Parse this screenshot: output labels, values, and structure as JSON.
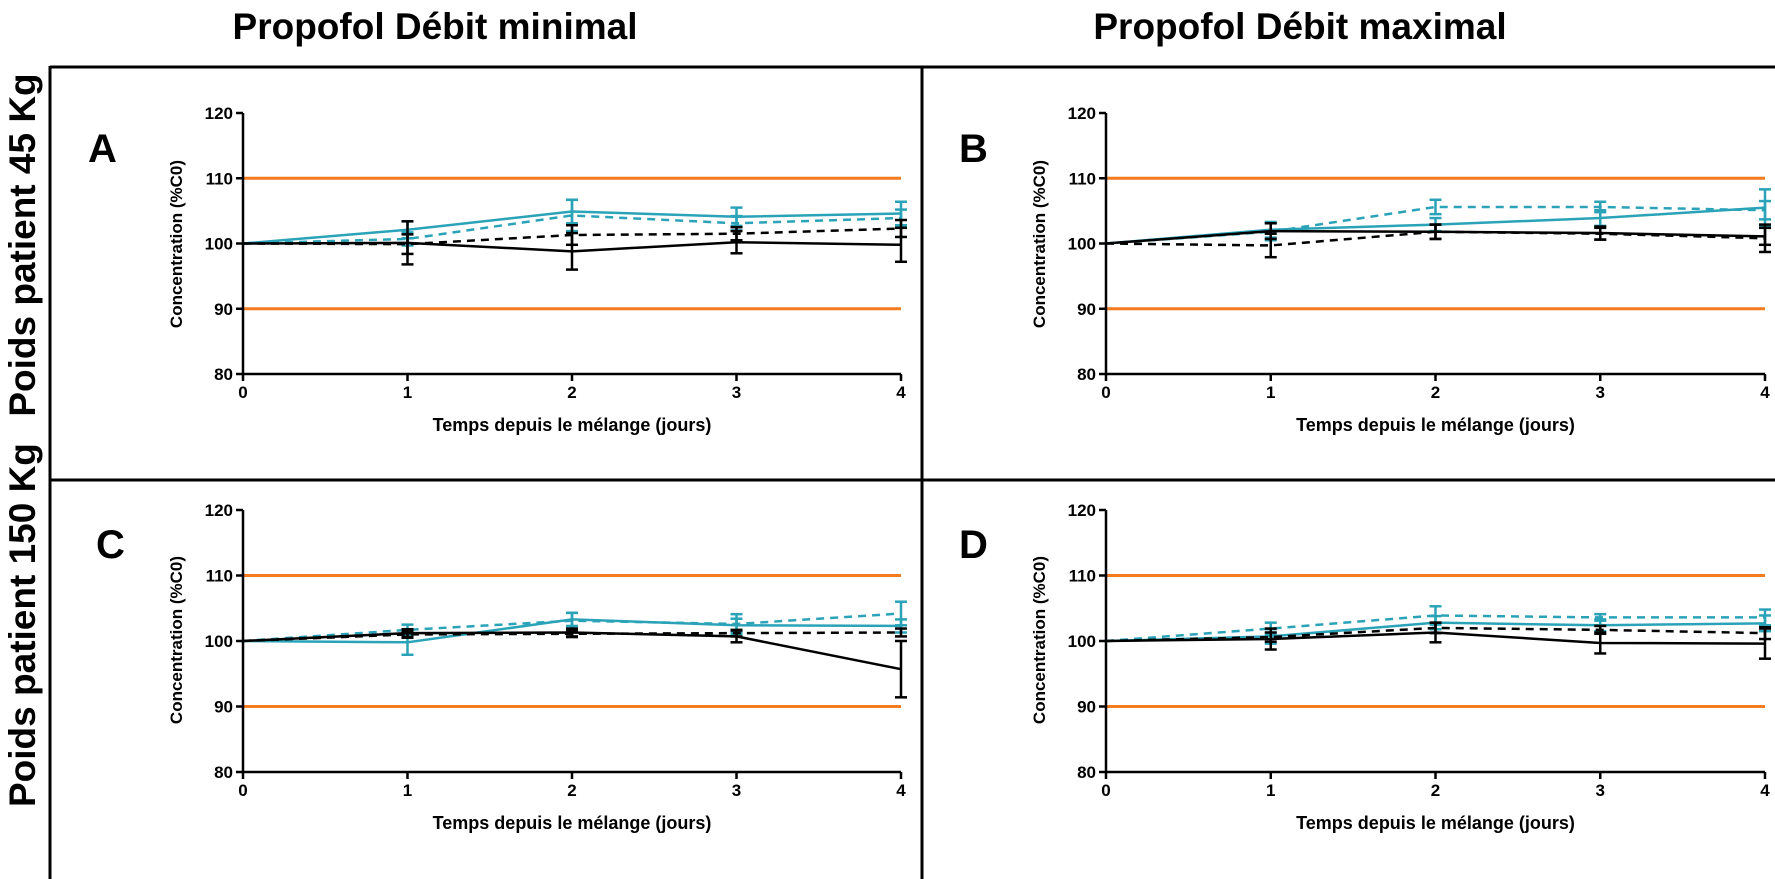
{
  "columns": [
    "Propofol Débit minimal",
    "Propofol Débit maximal"
  ],
  "rows": [
    "Poids patient 45 Kg",
    "Poids patient 150 Kg"
  ],
  "colors": {
    "teal": "#2aa3b8",
    "black": "#000000",
    "limit": "#f47b20"
  },
  "chart_data": [
    {
      "panel": "A",
      "type": "line",
      "xlabel": "Temps depuis le mélange (jours)",
      "ylabel": "Concentration (%C0)",
      "xlim": [
        0,
        4
      ],
      "ylim": [
        80,
        120
      ],
      "xticks": [
        0,
        1,
        2,
        3,
        4
      ],
      "yticks": [
        80,
        90,
        100,
        110,
        120
      ],
      "limits": [
        90,
        110
      ],
      "x": [
        0,
        1,
        2,
        3,
        4
      ],
      "series": [
        {
          "color": "teal",
          "dashed": false,
          "values": [
            100,
            102.1,
            104.9,
            104.1,
            104.6
          ],
          "err": [
            0,
            1.3,
            1.8,
            1.4,
            1.8
          ]
        },
        {
          "color": "teal",
          "dashed": true,
          "values": [
            100,
            100.7,
            104.3,
            103.1,
            103.9
          ],
          "err": [
            0,
            1.0,
            2.4,
            1.1,
            1.3
          ]
        },
        {
          "color": "black",
          "dashed": false,
          "values": [
            100,
            100.1,
            98.8,
            100.2,
            99.8
          ],
          "err": [
            0,
            3.3,
            2.8,
            1.7,
            2.6
          ]
        },
        {
          "color": "black",
          "dashed": true,
          "values": [
            100,
            99.9,
            101.3,
            101.5,
            102.3
          ],
          "err": [
            0,
            1.5,
            1.5,
            1.0,
            1.3
          ]
        }
      ]
    },
    {
      "panel": "B",
      "type": "line",
      "xlabel": "Temps depuis le mélange (jours)",
      "ylabel": "Concentration (%C0)",
      "xlim": [
        0,
        4
      ],
      "ylim": [
        80,
        120
      ],
      "xticks": [
        0,
        1,
        2,
        3,
        4
      ],
      "yticks": [
        80,
        90,
        100,
        110,
        120
      ],
      "limits": [
        90,
        110
      ],
      "x": [
        0,
        1,
        2,
        3,
        4
      ],
      "series": [
        {
          "color": "teal",
          "dashed": false,
          "values": [
            100,
            102.1,
            102.9,
            103.9,
            105.5
          ],
          "err": [
            0,
            1.2,
            1.0,
            1.2,
            2.8
          ]
        },
        {
          "color": "teal",
          "dashed": true,
          "values": [
            100,
            101.8,
            105.6,
            105.6,
            105.1
          ],
          "err": [
            0,
            1.3,
            1.1,
            0.8,
            1.4
          ]
        },
        {
          "color": "black",
          "dashed": false,
          "values": [
            100,
            101.9,
            101.8,
            101.6,
            101.1
          ],
          "err": [
            0,
            1.2,
            1.1,
            1.0,
            1.3
          ]
        },
        {
          "color": "black",
          "dashed": true,
          "values": [
            100,
            99.7,
            101.8,
            101.5,
            100.8
          ],
          "err": [
            0,
            1.8,
            1.1,
            0.9,
            2.1
          ]
        }
      ]
    },
    {
      "panel": "C",
      "type": "line",
      "xlabel": "Temps depuis le mélange (jours)",
      "ylabel": "Concentration (%C0)",
      "xlim": [
        0,
        4
      ],
      "ylim": [
        80,
        120
      ],
      "xticks": [
        0,
        1,
        2,
        3,
        4
      ],
      "yticks": [
        80,
        90,
        100,
        110,
        120
      ],
      "limits": [
        90,
        110
      ],
      "x": [
        0,
        1,
        2,
        3,
        4
      ],
      "series": [
        {
          "color": "teal",
          "dashed": false,
          "values": [
            100,
            99.8,
            103.3,
            102.4,
            102.3
          ],
          "err": [
            0,
            1.9,
            1.0,
            1.0,
            1.0
          ]
        },
        {
          "color": "teal",
          "dashed": true,
          "values": [
            100,
            101.7,
            103.1,
            102.6,
            104.2
          ],
          "err": [
            0,
            0.8,
            1.2,
            1.5,
            1.8
          ]
        },
        {
          "color": "black",
          "dashed": false,
          "values": [
            100,
            101.2,
            101.3,
            100.7,
            95.7
          ],
          "err": [
            0,
            0.6,
            0.6,
            0.9,
            4.3
          ]
        },
        {
          "color": "black",
          "dashed": true,
          "values": [
            100,
            101.0,
            101.1,
            101.2,
            101.3
          ],
          "err": [
            0,
            0.5,
            0.5,
            0.5,
            0.6
          ]
        }
      ]
    },
    {
      "panel": "D",
      "type": "line",
      "xlabel": "Temps depuis le mélange (jours)",
      "ylabel": "Concentration (%C0)",
      "xlim": [
        0,
        4
      ],
      "ylim": [
        80,
        120
      ],
      "xticks": [
        0,
        1,
        2,
        3,
        4
      ],
      "yticks": [
        80,
        90,
        100,
        110,
        120
      ],
      "limits": [
        90,
        110
      ],
      "x": [
        0,
        1,
        2,
        3,
        4
      ],
      "series": [
        {
          "color": "teal",
          "dashed": false,
          "values": [
            100,
            100.7,
            102.8,
            102.4,
            102.7
          ],
          "err": [
            0,
            1.1,
            1.0,
            0.9,
            1.2
          ]
        },
        {
          "color": "teal",
          "dashed": true,
          "values": [
            100,
            101.9,
            103.9,
            103.6,
            103.6
          ],
          "err": [
            0,
            0.9,
            1.4,
            0.5,
            1.2
          ]
        },
        {
          "color": "black",
          "dashed": false,
          "values": [
            100,
            100.3,
            101.3,
            99.7,
            99.6
          ],
          "err": [
            0,
            1.6,
            1.5,
            1.6,
            2.3
          ]
        },
        {
          "color": "black",
          "dashed": true,
          "values": [
            100,
            100.6,
            102.0,
            101.7,
            101.2
          ],
          "err": [
            0,
            0.7,
            0.8,
            0.6,
            0.9
          ]
        }
      ]
    }
  ]
}
